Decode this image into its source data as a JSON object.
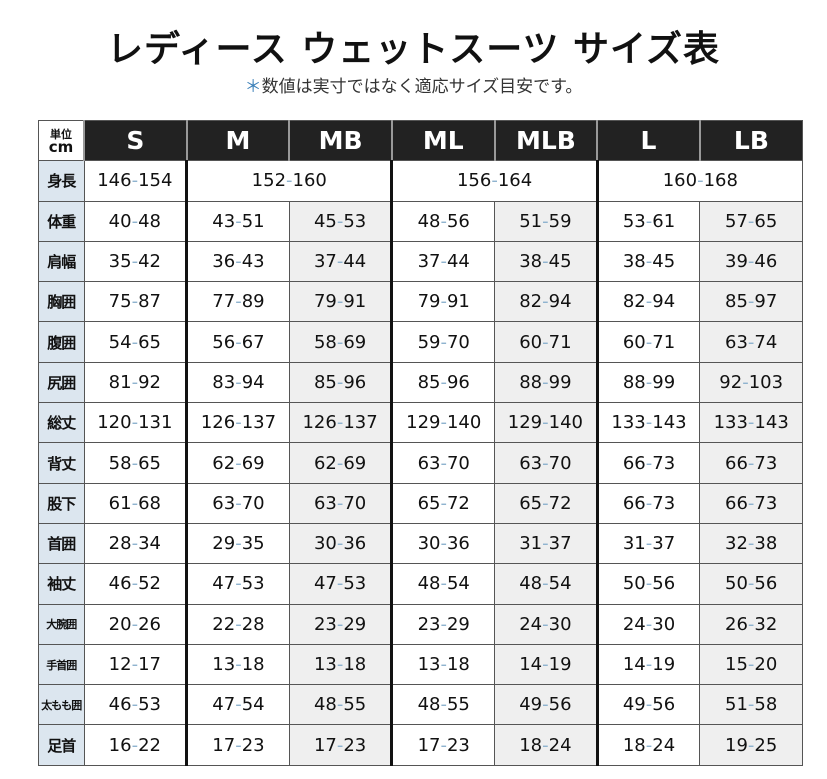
{
  "title": "レディース ウェットスーツ サイズ表",
  "subtitle_mark": "＊",
  "subtitle": "数値は実寸ではなく適応サイズ目安です。",
  "unit": {
    "line1": "単位",
    "line2": "cm"
  },
  "sizes": [
    "S",
    "M",
    "MB",
    "ML",
    "MLB",
    "L",
    "LB"
  ],
  "height_row": {
    "label": "身長",
    "values": [
      "146-154",
      "152-160",
      "156-164",
      "160-168"
    ]
  },
  "rows": [
    {
      "label": "体重",
      "values": [
        "40-48",
        "43-51",
        "45-53",
        "48-56",
        "51-59",
        "53-61",
        "57-65"
      ]
    },
    {
      "label": "肩幅",
      "values": [
        "35-42",
        "36-43",
        "37-44",
        "37-44",
        "38-45",
        "38-45",
        "39-46"
      ]
    },
    {
      "label": "胸囲",
      "values": [
        "75-87",
        "77-89",
        "79-91",
        "79-91",
        "82-94",
        "82-94",
        "85-97"
      ]
    },
    {
      "label": "腹囲",
      "values": [
        "54-65",
        "56-67",
        "58-69",
        "59-70",
        "60-71",
        "60-71",
        "63-74"
      ]
    },
    {
      "label": "尻囲",
      "values": [
        "81-92",
        "83-94",
        "85-96",
        "85-96",
        "88-99",
        "88-99",
        "92-103"
      ]
    },
    {
      "label": "総丈",
      "values": [
        "120-131",
        "126-137",
        "126-137",
        "129-140",
        "129-140",
        "133-143",
        "133-143"
      ]
    },
    {
      "label": "背丈",
      "values": [
        "58-65",
        "62-69",
        "62-69",
        "63-70",
        "63-70",
        "66-73",
        "66-73"
      ]
    },
    {
      "label": "股下",
      "values": [
        "61-68",
        "63-70",
        "63-70",
        "65-72",
        "65-72",
        "66-73",
        "66-73"
      ]
    },
    {
      "label": "首囲",
      "values": [
        "28-34",
        "29-35",
        "30-36",
        "30-36",
        "31-37",
        "31-37",
        "32-38"
      ]
    },
    {
      "label": "袖丈",
      "values": [
        "46-52",
        "47-53",
        "47-53",
        "48-54",
        "48-54",
        "50-56",
        "50-56"
      ]
    },
    {
      "label": "大腕囲",
      "values": [
        "20-26",
        "22-28",
        "23-29",
        "23-29",
        "24-30",
        "24-30",
        "26-32"
      ]
    },
    {
      "label": "手首囲",
      "values": [
        "12-17",
        "13-18",
        "13-18",
        "13-18",
        "14-19",
        "14-19",
        "15-20"
      ]
    },
    {
      "label": "太もも囲",
      "values": [
        "46-53",
        "47-54",
        "48-55",
        "48-55",
        "49-56",
        "49-56",
        "51-58"
      ]
    },
    {
      "label": "足首",
      "values": [
        "16-22",
        "17-23",
        "17-23",
        "17-23",
        "18-24",
        "18-24",
        "19-25"
      ]
    }
  ]
}
